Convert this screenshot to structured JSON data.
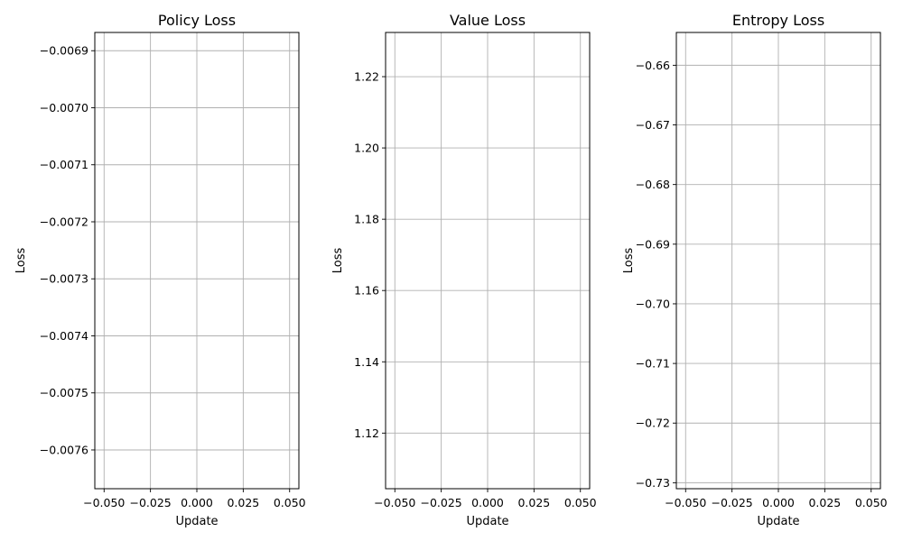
{
  "chart_data": [
    {
      "type": "line",
      "title": "Policy Loss",
      "xlabel": "Update",
      "ylabel": "Loss",
      "xlim": [
        -0.055,
        0.055
      ],
      "ylim": [
        -0.007668,
        -0.006868
      ],
      "x_ticks": [
        -0.05,
        -0.025,
        0.0,
        0.025,
        0.05
      ],
      "x_tick_labels": [
        "−0.050",
        "−0.025",
        "0.000",
        "0.025",
        "0.050"
      ],
      "y_ticks": [
        -0.0069,
        -0.007,
        -0.0071,
        -0.0072,
        -0.0073,
        -0.0074,
        -0.0075,
        -0.0076
      ],
      "y_tick_labels": [
        "−0.0069",
        "−0.0070",
        "−0.0071",
        "−0.0072",
        "−0.0073",
        "−0.0074",
        "−0.0075",
        "−0.0076"
      ],
      "grid": true,
      "series": [
        {
          "values": []
        }
      ]
    },
    {
      "type": "line",
      "title": "Value Loss",
      "xlabel": "Update",
      "ylabel": "Loss",
      "xlim": [
        -0.055,
        0.055
      ],
      "ylim": [
        1.1044,
        1.2324
      ],
      "x_ticks": [
        -0.05,
        -0.025,
        0.0,
        0.025,
        0.05
      ],
      "x_tick_labels": [
        "−0.050",
        "−0.025",
        "0.000",
        "0.025",
        "0.050"
      ],
      "y_ticks": [
        1.12,
        1.14,
        1.16,
        1.18,
        1.2,
        1.22
      ],
      "y_tick_labels": [
        "1.12",
        "1.14",
        "1.16",
        "1.18",
        "1.20",
        "1.22"
      ],
      "grid": true,
      "series": [
        {
          "values": []
        }
      ]
    },
    {
      "type": "line",
      "title": "Entropy Loss",
      "xlabel": "Update",
      "ylabel": "Loss",
      "xlim": [
        -0.055,
        0.055
      ],
      "ylim": [
        -0.731,
        -0.6545
      ],
      "x_ticks": [
        -0.05,
        -0.025,
        0.0,
        0.025,
        0.05
      ],
      "x_tick_labels": [
        "−0.050",
        "−0.025",
        "0.000",
        "0.025",
        "0.050"
      ],
      "y_ticks": [
        -0.66,
        -0.67,
        -0.68,
        -0.69,
        -0.7,
        -0.71,
        -0.72,
        -0.73
      ],
      "y_tick_labels": [
        "−0.66",
        "−0.67",
        "−0.68",
        "−0.69",
        "−0.70",
        "−0.71",
        "−0.72",
        "−0.73"
      ],
      "grid": true,
      "series": [
        {
          "values": []
        }
      ]
    }
  ]
}
